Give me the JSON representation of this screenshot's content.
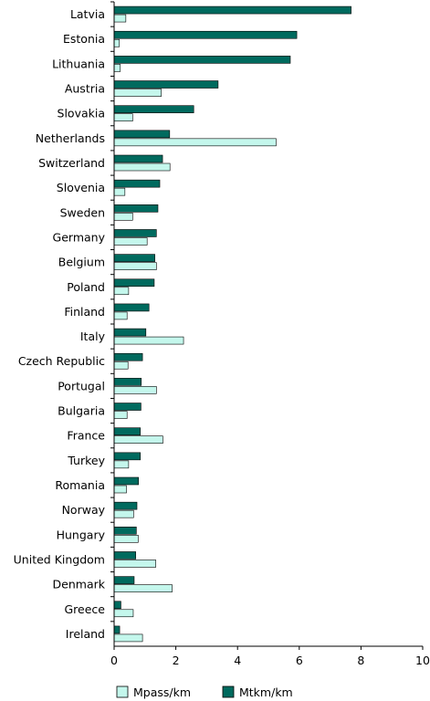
{
  "chart_data": {
    "type": "bar",
    "orientation": "horizontal",
    "categories": [
      "Latvia",
      "Estonia",
      "Lithuania",
      "Austria",
      "Slovakia",
      "Netherlands",
      "Switzerland",
      "Slovenia",
      "Sweden",
      "Germany",
      "Belgium",
      "Poland",
      "Finland",
      "Italy",
      "Czech Republic",
      "Portugal",
      "Bulgaria",
      "France",
      "Turkey",
      "Romania",
      "Norway",
      "Hungary",
      "United Kingdom",
      "Denmark",
      "Greece",
      "Ireland"
    ],
    "series": [
      {
        "name": "Mtkm/km",
        "color": "#006a5e",
        "values": [
          7.68,
          5.92,
          5.71,
          3.37,
          2.58,
          1.8,
          1.57,
          1.48,
          1.42,
          1.37,
          1.32,
          1.3,
          1.13,
          1.03,
          0.92,
          0.88,
          0.87,
          0.85,
          0.85,
          0.79,
          0.74,
          0.72,
          0.7,
          0.65,
          0.22,
          0.18
        ]
      },
      {
        "name": "Mpass/km",
        "color": "#c4f7ec",
        "values": [
          0.38,
          0.17,
          0.2,
          1.53,
          0.6,
          5.25,
          1.81,
          0.35,
          0.6,
          1.07,
          1.37,
          0.47,
          0.42,
          2.25,
          0.45,
          1.37,
          0.42,
          1.58,
          0.47,
          0.4,
          0.63,
          0.78,
          1.35,
          1.88,
          0.62,
          0.92
        ]
      }
    ],
    "xlim": [
      0,
      10
    ],
    "xticks": [
      "0",
      "2",
      "4",
      "6",
      "8",
      "10"
    ],
    "grid": false,
    "legend_position": "bottom",
    "legend": [
      "Mpass/km",
      "Mtkm/km"
    ]
  }
}
